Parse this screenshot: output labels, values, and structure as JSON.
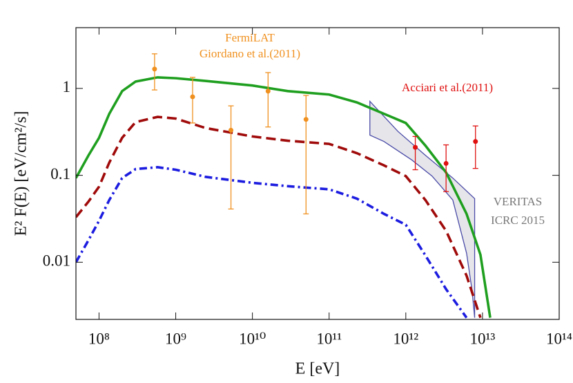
{
  "chart_data": {
    "type": "line",
    "log_x": true,
    "log_y": true,
    "xlabel": "E  [eV]",
    "ylabel": "E² F(E)  [eV/cm²/s]",
    "xlim": [
      50000000,
      100000000000000
    ],
    "ylim": [
      0.0022,
      5
    ],
    "xticks": [
      {
        "value": 100000000,
        "label": "10⁸"
      },
      {
        "value": 1000000000,
        "label": "10⁹"
      },
      {
        "value": 10000000000,
        "label": "10¹⁰"
      },
      {
        "value": 100000000000,
        "label": "10¹¹"
      },
      {
        "value": 1000000000000,
        "label": "10¹²"
      },
      {
        "value": 10000000000000,
        "label": "10¹³"
      },
      {
        "value": 100000000000000,
        "label": "10¹⁴"
      }
    ],
    "yticks": [
      0.01,
      0.1,
      1
    ],
    "x": [
      50000000,
      73000000,
      100000000,
      136000000,
      200000000,
      300000000,
      580000000,
      1000000000,
      2450000000,
      10000000000,
      29000000000,
      100000000000,
      230000000000,
      520000000000,
      1000000000000,
      1800000000000,
      3350000000000,
      6200000000000,
      9400000000000,
      12600000000000
    ],
    "series": [
      {
        "color": "#1f9f1f",
        "dash": "none",
        "values": [
          0.093,
          0.17,
          0.27,
          0.51,
          0.93,
          1.2,
          1.34,
          1.31,
          1.22,
          1.08,
          0.93,
          0.85,
          0.69,
          0.51,
          0.4,
          0.22,
          0.108,
          0.036,
          0.0122,
          0.0023
        ]
      },
      {
        "color": "#a00a0a",
        "dash": "14,7",
        "values": [
          0.033,
          0.05,
          0.074,
          0.14,
          0.27,
          0.41,
          0.47,
          0.45,
          0.35,
          0.28,
          0.25,
          0.23,
          0.18,
          0.13,
          0.098,
          0.052,
          0.023,
          0.007,
          0.0023,
          null
        ]
      },
      {
        "color": "#1c1ce0",
        "dash": "11,5,3,5",
        "values": [
          0.01,
          0.018,
          0.03,
          0.052,
          0.093,
          0.118,
          0.124,
          0.116,
          0.096,
          0.082,
          0.075,
          0.069,
          0.054,
          0.036,
          0.027,
          0.012,
          0.0049,
          0.0023,
          null,
          null
        ]
      }
    ],
    "datasets": [
      {
        "color": "#f0901e",
        "x": [
          530000000,
          1660000000,
          5250000000,
          16000000000,
          50000000000
        ],
        "values": [
          1.67,
          0.8,
          0.33,
          0.93,
          0.44
        ],
        "lower": [
          0.96,
          0.4,
          0.041,
          0.36,
          0.036
        ],
        "upper": [
          2.5,
          1.34,
          0.63,
          1.52,
          0.83
        ]
      },
      {
        "color": "#e01010",
        "x": [
          1330000000000,
          3350000000000,
          8100000000000
        ],
        "values": [
          0.21,
          0.137,
          0.245
        ],
        "lower": [
          0.116,
          0.065,
          0.12
        ],
        "upper": [
          0.28,
          0.224,
          0.37
        ]
      }
    ],
    "band": {
      "fill": "#e6e6ea",
      "color": "#4a4aa8",
      "x": [
        340000000000,
        790000000000,
        1800000000000,
        4100000000000,
        7900000000000,
        7900000000000,
        7300000000000,
        6200000000000,
        4100000000000,
        2200000000000,
        1200000000000,
        520000000000,
        340000000000
      ],
      "y": [
        0.71,
        0.32,
        0.17,
        0.093,
        0.054,
        0.0023,
        0.0048,
        0.0127,
        0.052,
        0.098,
        0.15,
        0.245,
        0.29
      ]
    },
    "annotations": [
      "FermiLAT",
      "Giordano et al.(2011)",
      "Acciari et al.(2011)",
      "VERITAS",
      "ICRC 2015"
    ]
  }
}
